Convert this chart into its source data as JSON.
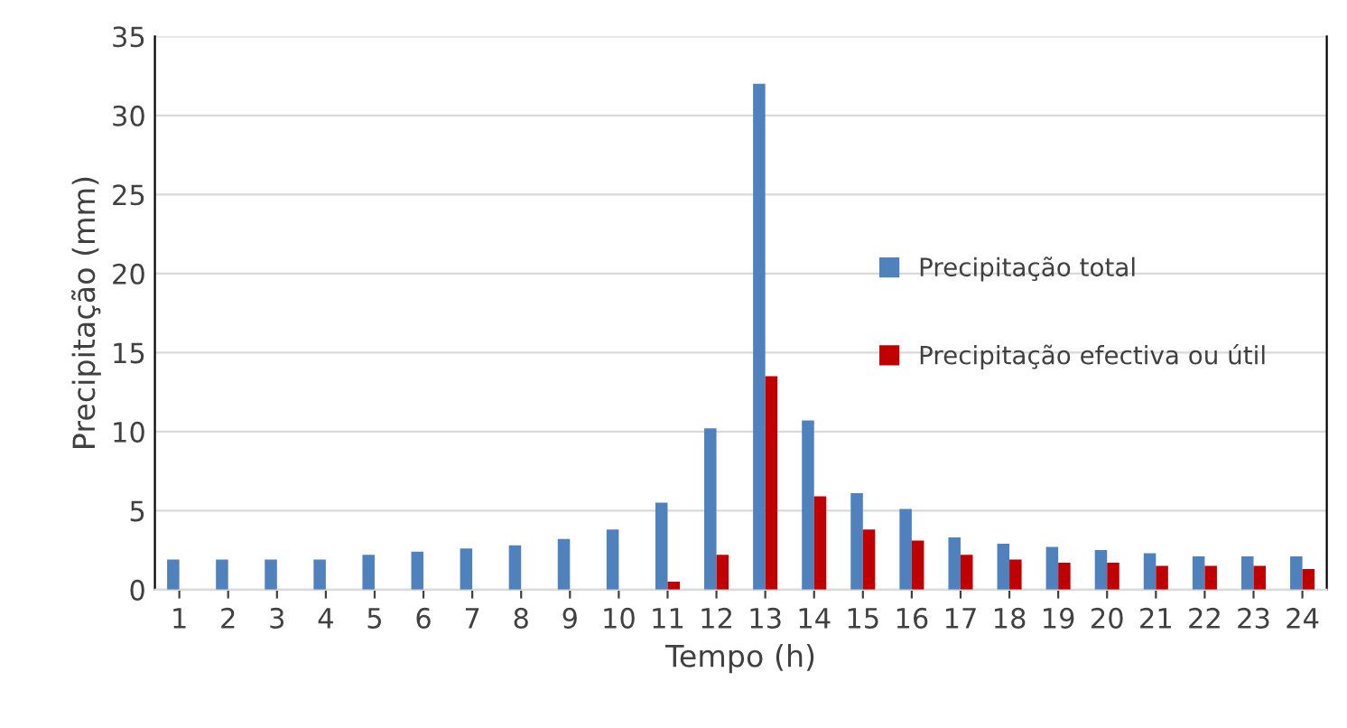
{
  "chart_data": {
    "type": "bar",
    "xlabel": "Tempo (h)",
    "ylabel": "Precipitação (mm)",
    "categories": [
      "1",
      "2",
      "3",
      "4",
      "5",
      "6",
      "7",
      "8",
      "9",
      "10",
      "11",
      "12",
      "13",
      "14",
      "15",
      "16",
      "17",
      "18",
      "19",
      "20",
      "21",
      "22",
      "23",
      "24"
    ],
    "series": [
      {
        "name": "Precipitação total",
        "color": "#4f81bd",
        "values": [
          1.9,
          1.9,
          1.9,
          1.9,
          2.2,
          2.4,
          2.6,
          2.8,
          3.2,
          3.8,
          5.5,
          10.2,
          32,
          10.7,
          6.1,
          5.1,
          3.3,
          2.9,
          2.7,
          2.5,
          2.3,
          2.1,
          2.1,
          2.1
        ]
      },
      {
        "name": "Precipitação efectiva ou útil",
        "color": "#c00000",
        "values": [
          0,
          0,
          0,
          0,
          0,
          0,
          0,
          0,
          0,
          0,
          0.5,
          2.2,
          13.5,
          5.9,
          3.8,
          3.1,
          2.2,
          1.9,
          1.7,
          1.7,
          1.5,
          1.5,
          1.5,
          1.3
        ]
      }
    ],
    "ylim": [
      0,
      35
    ],
    "yticks": [
      0,
      5,
      10,
      15,
      20,
      25,
      30,
      35
    ],
    "grid": "y",
    "legend": "right"
  }
}
